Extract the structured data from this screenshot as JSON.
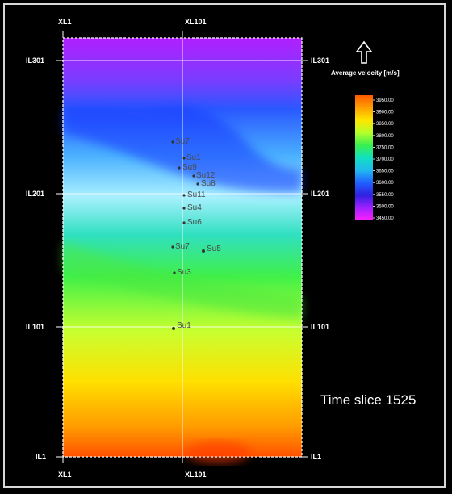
{
  "inline_labels": {
    "top": [
      "XL1",
      "XL101"
    ],
    "bottom": [
      "XL1",
      "XL101"
    ]
  },
  "crossline_labels_left": [
    "IL301",
    "IL201",
    "IL101",
    "IL1"
  ],
  "crossline_labels_right": [
    "IL301",
    "IL201",
    "IL101",
    "IL1"
  ],
  "colorbar": {
    "title": "Average velocity [m/s]",
    "ticks": [
      "3950.00",
      "3900.00",
      "3850.00",
      "3800.00",
      "3750.00",
      "3700.00",
      "3650.00",
      "3600.00",
      "3550.00",
      "3500.00",
      "3450.00"
    ],
    "colors": [
      "#ff5a00",
      "#ffa000",
      "#ffe600",
      "#b4ff2a",
      "#38f050",
      "#10e0c0",
      "#20b8f0",
      "#2060ff",
      "#3020e0",
      "#a020ff",
      "#ff20ff"
    ]
  },
  "north_arrow": "up-arrow-icon",
  "slice_title": "Time slice 1525",
  "wells": [
    {
      "name": "Su7"
    },
    {
      "name": "Su1"
    },
    {
      "name": "Su9"
    },
    {
      "name": "Su12"
    },
    {
      "name": "Su8"
    },
    {
      "name": "Su11"
    },
    {
      "name": "Su4"
    },
    {
      "name": "Su6"
    },
    {
      "name": "Su7"
    },
    {
      "name": "Su5"
    },
    {
      "name": "Su3"
    },
    {
      "name": "Su1"
    }
  ]
}
